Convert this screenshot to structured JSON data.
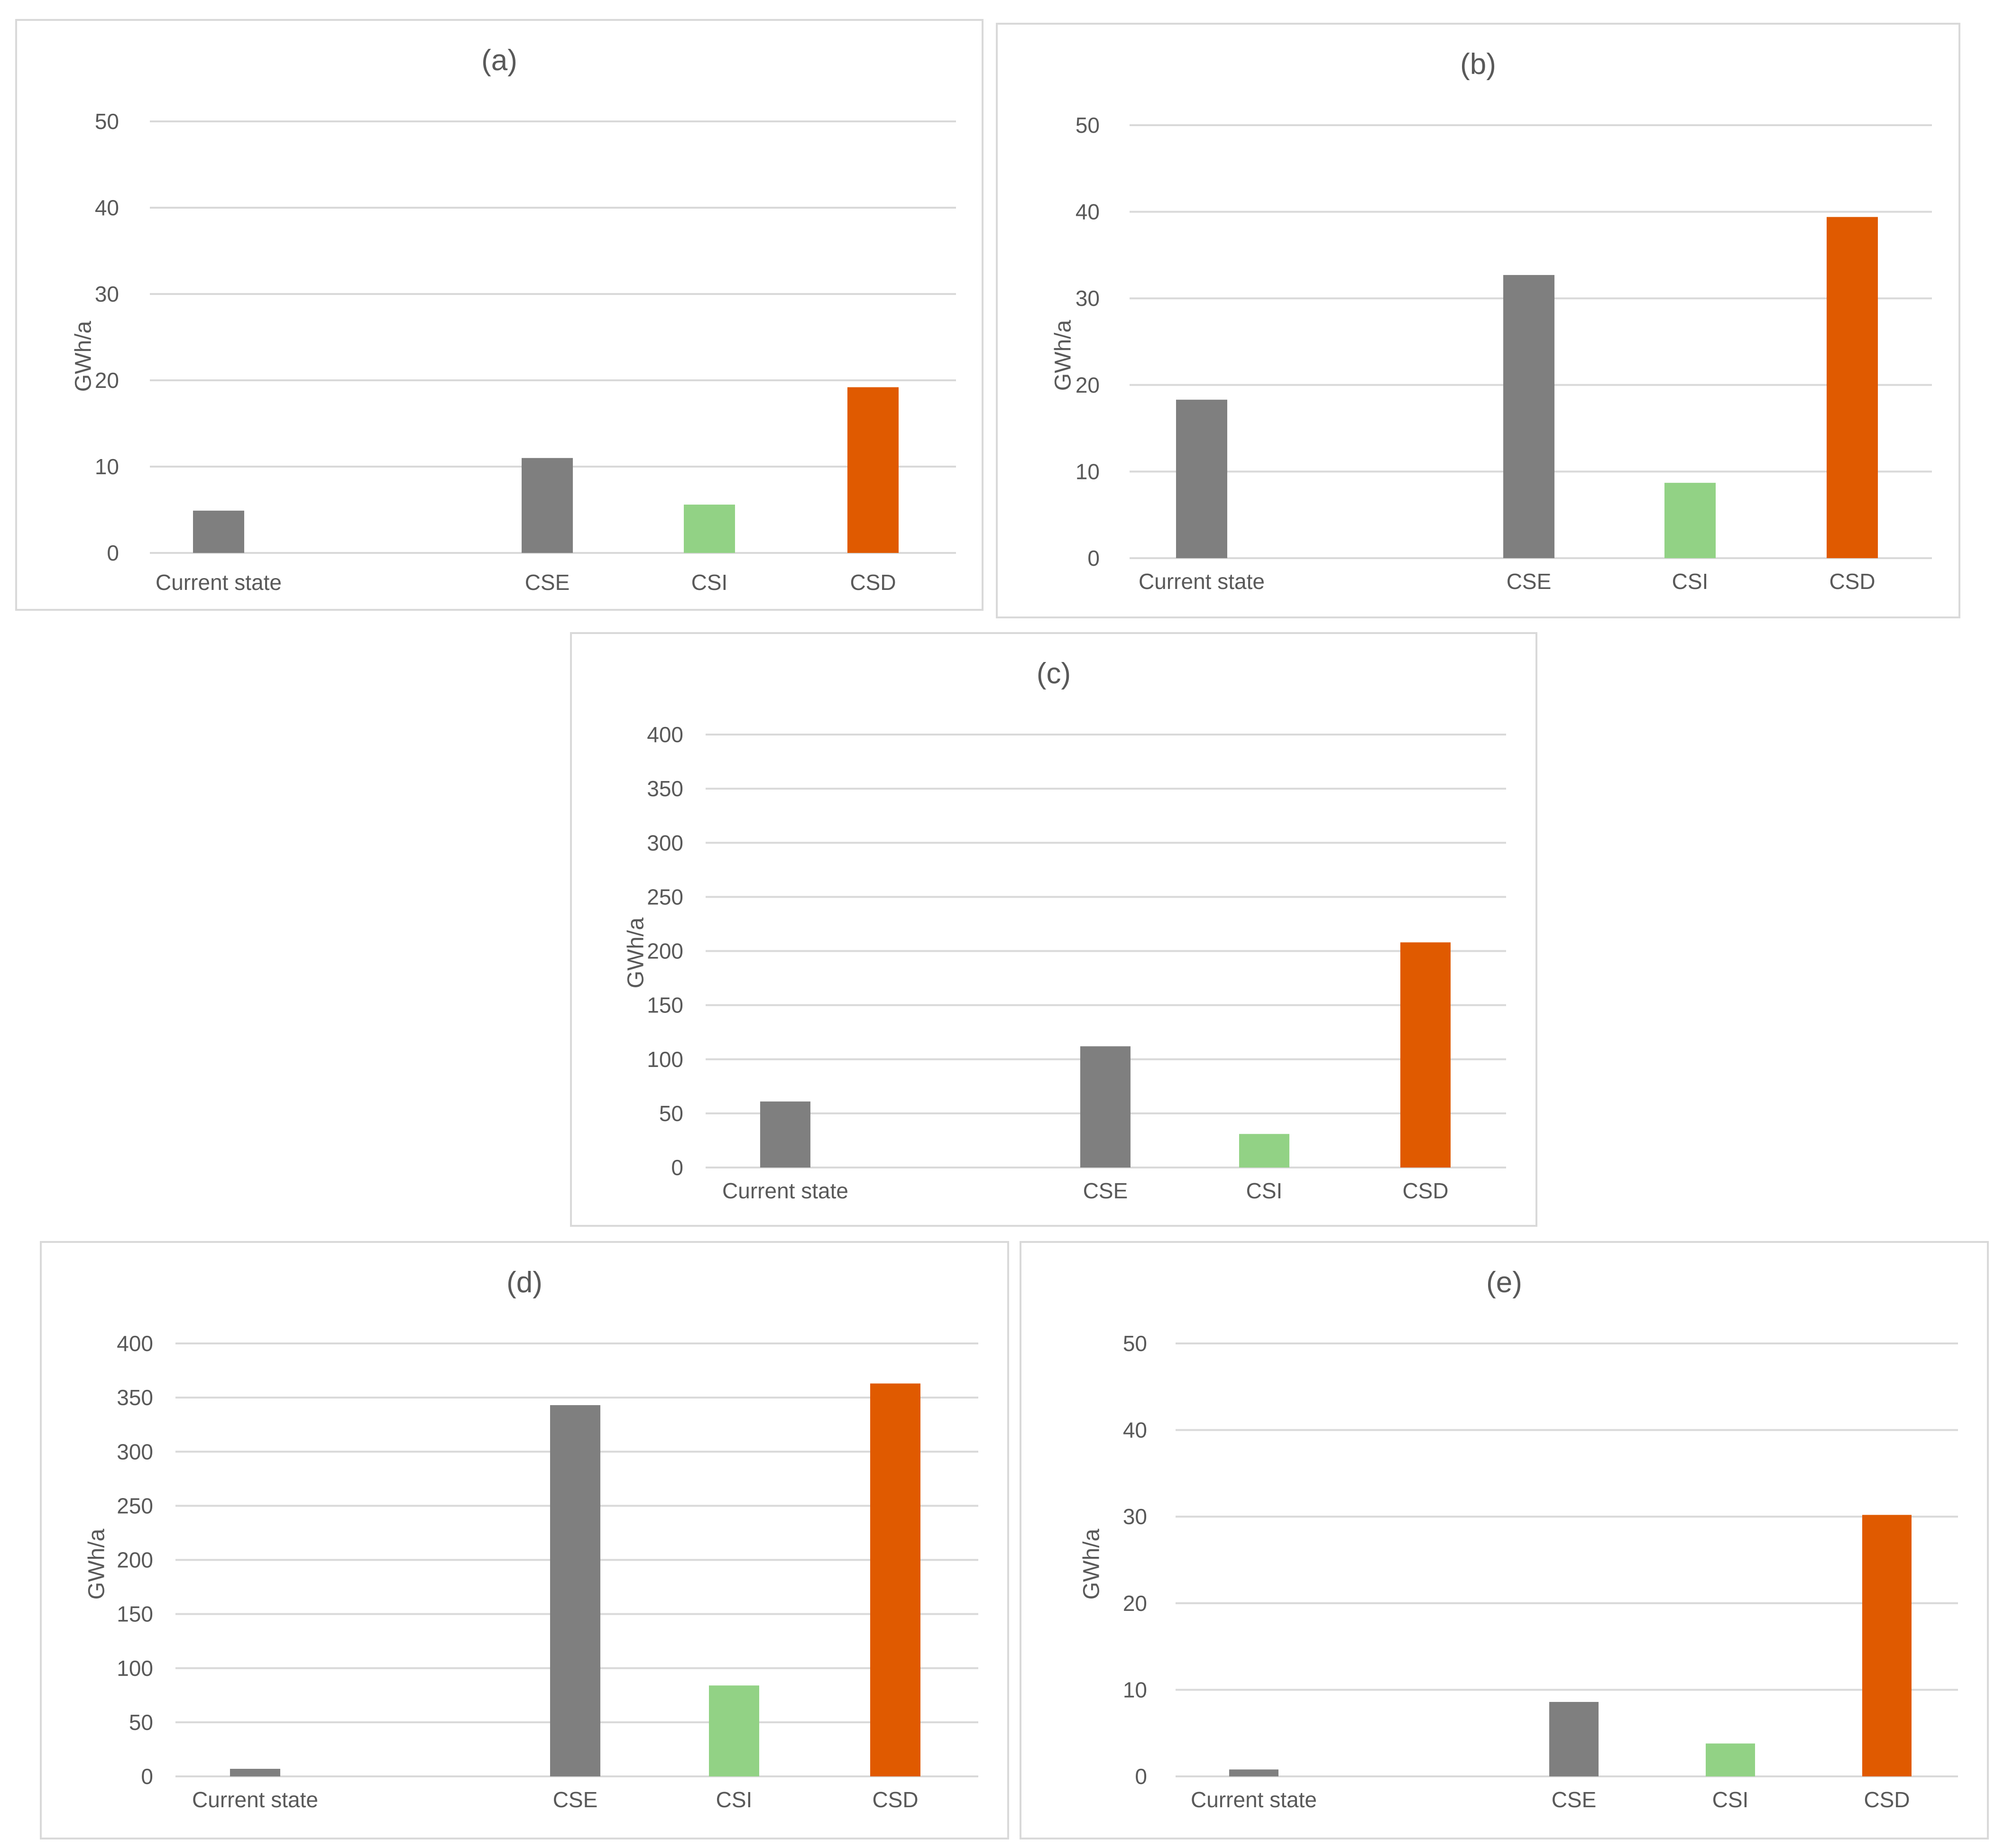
{
  "colors": {
    "current": "#7f7f7f",
    "cse": "#7f7f7f",
    "csi": "#92d285",
    "csd": "#e05a00",
    "grid": "#d9d9d9",
    "text": "#595959"
  },
  "chart_data": [
    {
      "type": "bar",
      "title": "(a)",
      "ylabel": "GWh/a",
      "xlabel": "",
      "categories": [
        "Current state",
        "CSE",
        "CSI",
        "CSD"
      ],
      "values": [
        4.9,
        11.0,
        5.6,
        19.2
      ],
      "ylim": [
        0,
        50
      ],
      "yticks": [
        0,
        10,
        20,
        30,
        40,
        50
      ],
      "grid": true
    },
    {
      "type": "bar",
      "title": "(b)",
      "ylabel": "GWh/a",
      "xlabel": "",
      "categories": [
        "Current state",
        "CSE",
        "CSI",
        "CSD"
      ],
      "values": [
        18.3,
        32.7,
        8.7,
        39.4
      ],
      "ylim": [
        0,
        50
      ],
      "yticks": [
        0,
        10,
        20,
        30,
        40,
        50
      ],
      "grid": true
    },
    {
      "type": "bar",
      "title": "(c)",
      "ylabel": "GWh/a",
      "xlabel": "",
      "categories": [
        "Current state",
        "CSE",
        "CSI",
        "CSD"
      ],
      "values": [
        61,
        112,
        31,
        208
      ],
      "ylim": [
        0,
        400
      ],
      "yticks": [
        0,
        50,
        100,
        150,
        200,
        250,
        300,
        350,
        400
      ],
      "grid": true
    },
    {
      "type": "bar",
      "title": "(d)",
      "ylabel": "GWh/a",
      "xlabel": "",
      "categories": [
        "Current state",
        "CSE",
        "CSI",
        "CSD"
      ],
      "values": [
        7,
        343,
        84,
        363
      ],
      "ylim": [
        0,
        400
      ],
      "yticks": [
        0,
        50,
        100,
        150,
        200,
        250,
        300,
        350,
        400
      ],
      "grid": true
    },
    {
      "type": "bar",
      "title": "(e)",
      "ylabel": "GWh/a",
      "xlabel": "",
      "categories": [
        "Current state",
        "CSE",
        "CSI",
        "CSD"
      ],
      "values": [
        0.8,
        8.6,
        3.8,
        30.2
      ],
      "ylim": [
        0,
        50
      ],
      "yticks": [
        0,
        10,
        20,
        30,
        40,
        50
      ],
      "grid": true
    }
  ]
}
